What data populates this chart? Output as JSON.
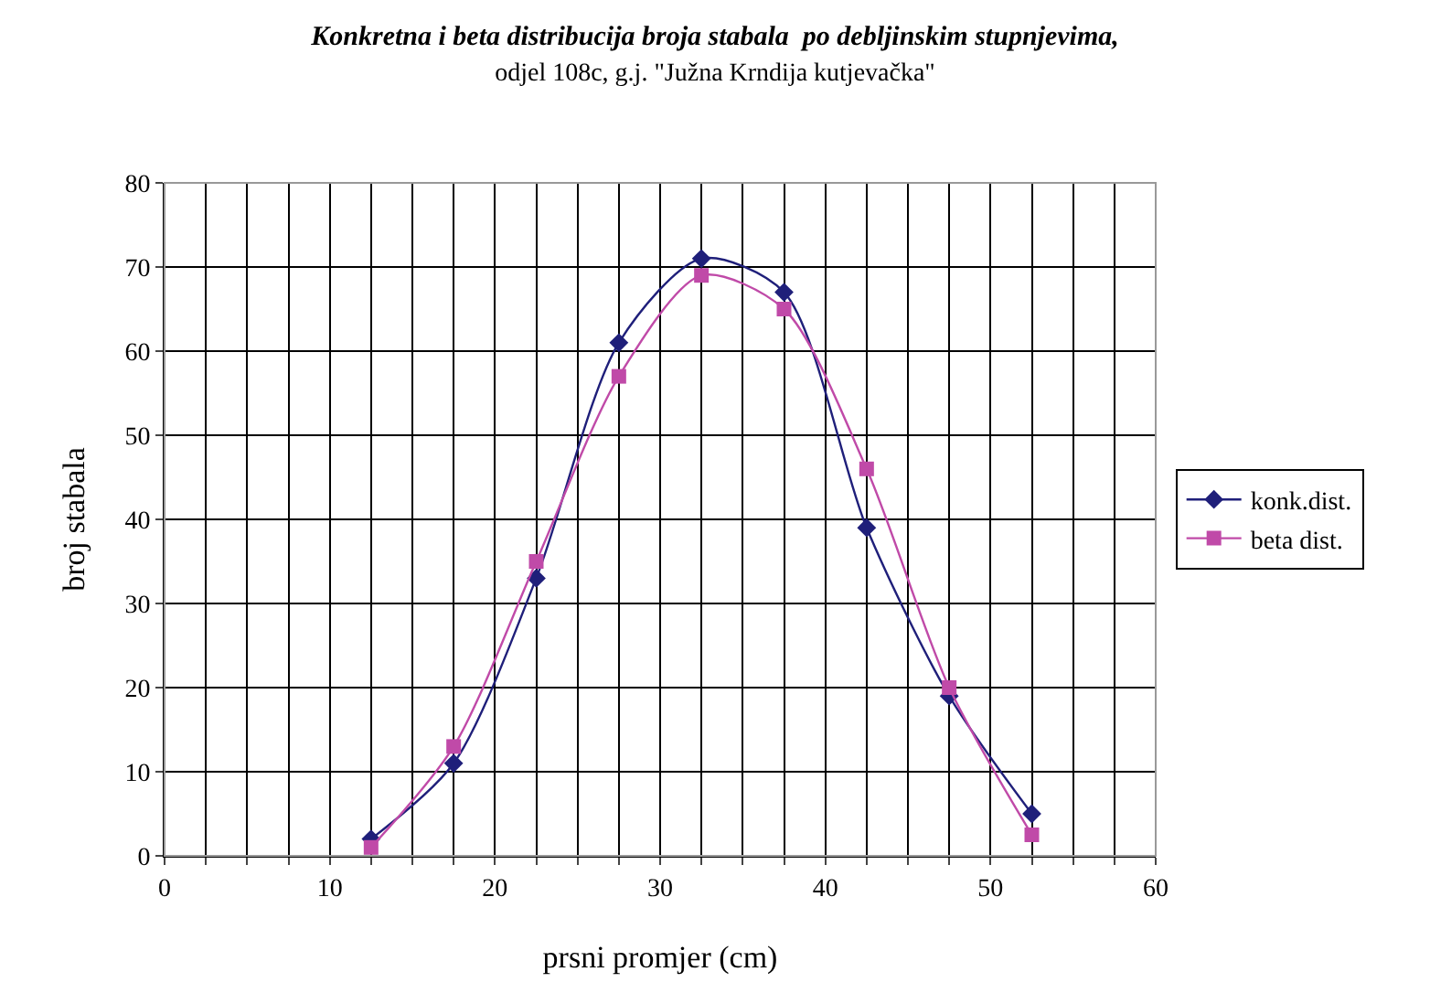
{
  "chart_data": {
    "type": "line",
    "title": "Konkretna i beta distribucija broja stabala  po debljinskim stupnjevima,",
    "subtitle": "odjel 108c, g.j. \"Južna Krndija kutjevačka\"",
    "xlabel": "prsni promjer (cm)",
    "ylabel": "broj stabala",
    "x": [
      12.5,
      17.5,
      22.5,
      27.5,
      32.5,
      37.5,
      42.5,
      47.5,
      52.5
    ],
    "series": [
      {
        "name": "konk.dist.",
        "color": "#1f1f7a",
        "marker": "diamond",
        "values": [
          2,
          11,
          33,
          61,
          71,
          67,
          39,
          19,
          5
        ]
      },
      {
        "name": "beta dist.",
        "color": "#c04aa8",
        "marker": "square",
        "values": [
          1,
          13,
          35,
          57,
          69,
          65,
          46,
          20,
          2.5
        ]
      }
    ],
    "xlim": [
      0,
      60
    ],
    "xticks": [
      0,
      {
        "value": 2.5,
        "label": null
      },
      {
        "value": 5,
        "label": null
      },
      {
        "value": 7.5,
        "label": null
      },
      10,
      {
        "value": 12.5,
        "label": null
      },
      {
        "value": 15,
        "label": null
      },
      {
        "value": 17.5,
        "label": null
      },
      20,
      {
        "value": 22.5,
        "label": null
      },
      {
        "value": 25,
        "label": null
      },
      {
        "value": 27.5,
        "label": null
      },
      30,
      {
        "value": 32.5,
        "label": null
      },
      {
        "value": 35,
        "label": null
      },
      {
        "value": 37.5,
        "label": null
      },
      40,
      {
        "value": 42.5,
        "label": null
      },
      {
        "value": 45,
        "label": null
      },
      {
        "value": 47.5,
        "label": null
      },
      50,
      {
        "value": 52.5,
        "label": null
      },
      {
        "value": 55,
        "label": null
      },
      {
        "value": 57.5,
        "label": null
      },
      60
    ],
    "ylim": [
      0,
      80
    ],
    "yticks": [
      0,
      10,
      20,
      30,
      40,
      50,
      60,
      70,
      80
    ],
    "grid": true,
    "legend": "right",
    "line_style": "solid"
  }
}
